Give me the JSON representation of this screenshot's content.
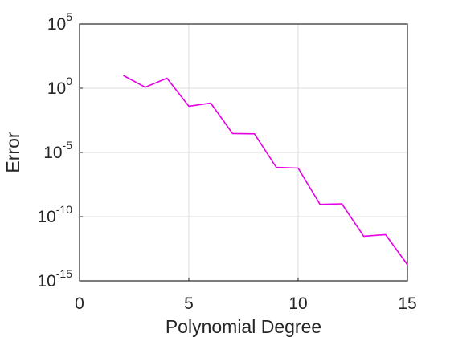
{
  "chart_data": {
    "type": "line",
    "xlabel": "Polynomial Degree",
    "ylabel": "Error",
    "xlim": [
      0,
      15
    ],
    "ylim_log10": [
      -15,
      5
    ],
    "yscale": "log",
    "grid": true,
    "x_ticks": [
      {
        "value": 0,
        "label": "0"
      },
      {
        "value": 5,
        "label": "5"
      },
      {
        "value": 10,
        "label": "10"
      },
      {
        "value": 15,
        "label": "15"
      }
    ],
    "y_ticks": [
      {
        "value_log10": 5,
        "base": "10",
        "exp": "5"
      },
      {
        "value_log10": 0,
        "base": "10",
        "exp": "0"
      },
      {
        "value_log10": -5,
        "base": "10",
        "exp": "-5"
      },
      {
        "value_log10": -10,
        "base": "10",
        "exp": "-10"
      },
      {
        "value_log10": -15,
        "base": "10",
        "exp": "-15"
      }
    ],
    "series": [
      {
        "color": "#e600e6",
        "x": [
          2,
          3,
          4,
          5,
          6,
          7,
          8,
          9,
          10,
          11,
          12,
          13,
          14,
          15
        ],
        "y": [
          10,
          1.2,
          6,
          0.04,
          0.07,
          0.0003,
          0.00028,
          7e-07,
          6e-07,
          9e-10,
          1e-09,
          3e-12,
          4e-12,
          1.8e-14
        ]
      }
    ]
  }
}
